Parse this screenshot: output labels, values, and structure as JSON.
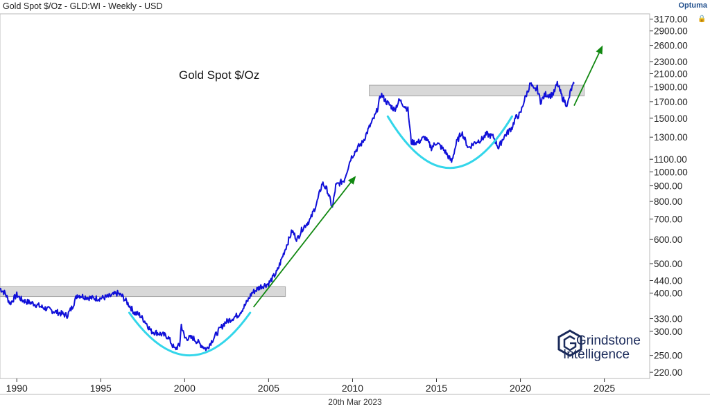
{
  "header": {
    "title": "Gold Spot $/Oz - GLD:WI - Weekly - USD",
    "brand": "Optuma"
  },
  "footer": {
    "date": "20th Mar 2023"
  },
  "logo": {
    "line1": "Grindstone",
    "line2": "Intelligence"
  },
  "icons": {
    "lock": "lock-icon"
  },
  "colors": {
    "series": "#1010d8",
    "arc": "#33d6ea",
    "arrow": "#118811",
    "band": "#d8d8d8"
  },
  "chart_data": {
    "type": "line",
    "title": "Gold Spot $/Oz",
    "scale": "log",
    "ylim": [
      210,
      3300
    ],
    "xlim": [
      1989.0,
      2027.7
    ],
    "yticks": [
      "220.00",
      "250.00",
      "300.00",
      "330.00",
      "400.00",
      "440.00",
      "500.00",
      "600.00",
      "700.00",
      "800.00",
      "900.00",
      "1000.00",
      "1100.00",
      "1300.00",
      "1500.00",
      "1700.00",
      "1900.00",
      "2100.00",
      "2300.00",
      "2600.00",
      "2900.00",
      "3170.00"
    ],
    "xticks": [
      "1990",
      "1995",
      "2000",
      "2005",
      "2010",
      "2015",
      "2020",
      "2025"
    ],
    "series": [
      {
        "name": "Gold Spot $/Oz",
        "x": [
          1989.0,
          1989.3,
          1989.6,
          1990.0,
          1990.3,
          1990.6,
          1991.0,
          1991.5,
          1992.0,
          1992.5,
          1993.0,
          1993.3,
          1993.6,
          1994.0,
          1994.5,
          1995.0,
          1995.5,
          1996.0,
          1996.3,
          1996.7,
          1997.0,
          1997.3,
          1997.7,
          1998.0,
          1998.5,
          1999.0,
          1999.4,
          1999.7,
          1999.8,
          2000.0,
          2000.5,
          2001.0,
          2001.3,
          2001.6,
          2002.0,
          2002.4,
          2002.8,
          2003.2,
          2003.6,
          2004.0,
          2004.5,
          2005.0,
          2005.5,
          2006.0,
          2006.4,
          2006.7,
          2007.0,
          2007.5,
          2007.9,
          2008.2,
          2008.5,
          2008.8,
          2009.0,
          2009.5,
          2009.9,
          2010.3,
          2010.6,
          2011.0,
          2011.4,
          2011.7,
          2012.0,
          2012.5,
          2012.8,
          2013.3,
          2013.5,
          2013.9,
          2014.3,
          2014.7,
          2015.0,
          2015.5,
          2015.9,
          2016.2,
          2016.5,
          2016.9,
          2017.3,
          2017.7,
          2018.0,
          2018.4,
          2018.7,
          2019.0,
          2019.5,
          2019.7,
          2020.0,
          2020.2,
          2020.6,
          2020.8,
          2021.0,
          2021.2,
          2021.5,
          2021.8,
          2022.0,
          2022.2,
          2022.5,
          2022.8,
          2023.0,
          2023.2
        ],
        "values": [
          415,
          400,
          370,
          395,
          380,
          375,
          370,
          360,
          352,
          345,
          338,
          360,
          395,
          390,
          385,
          385,
          390,
          400,
          390,
          365,
          345,
          340,
          320,
          300,
          295,
          288,
          262,
          270,
          315,
          285,
          285,
          270,
          262,
          278,
          300,
          320,
          330,
          340,
          365,
          400,
          420,
          430,
          470,
          560,
          640,
          600,
          650,
          700,
          800,
          920,
          870,
          760,
          900,
          940,
          1110,
          1200,
          1250,
          1400,
          1550,
          1800,
          1700,
          1600,
          1720,
          1600,
          1250,
          1250,
          1300,
          1200,
          1250,
          1170,
          1080,
          1250,
          1350,
          1200,
          1250,
          1280,
          1330,
          1300,
          1200,
          1300,
          1400,
          1500,
          1550,
          1700,
          1950,
          1850,
          1880,
          1700,
          1800,
          1780,
          1820,
          1950,
          1750,
          1650,
          1850,
          1950
        ]
      }
    ],
    "annotations": [
      {
        "type": "resistance-band",
        "label": "",
        "range": [
          1989.0,
          2006.0
        ],
        "y": [
          390,
          420
        ]
      },
      {
        "type": "resistance-band",
        "label": "",
        "range": [
          2011.0,
          2023.8
        ],
        "y": [
          1775,
          1925
        ]
      },
      {
        "type": "arc",
        "label": "cup",
        "range": [
          1996.7,
          2003.9
        ],
        "low": 250
      },
      {
        "type": "arc",
        "label": "cup",
        "range": [
          2012.1,
          2019.5
        ],
        "low": 1030
      },
      {
        "type": "arrow",
        "label": "",
        "from": [
          2004.1,
          360
        ],
        "to": [
          2010.2,
          970
        ]
      },
      {
        "type": "arrow",
        "label": "",
        "from": [
          2023.2,
          1650
        ],
        "to": [
          2024.9,
          2600
        ]
      }
    ]
  }
}
